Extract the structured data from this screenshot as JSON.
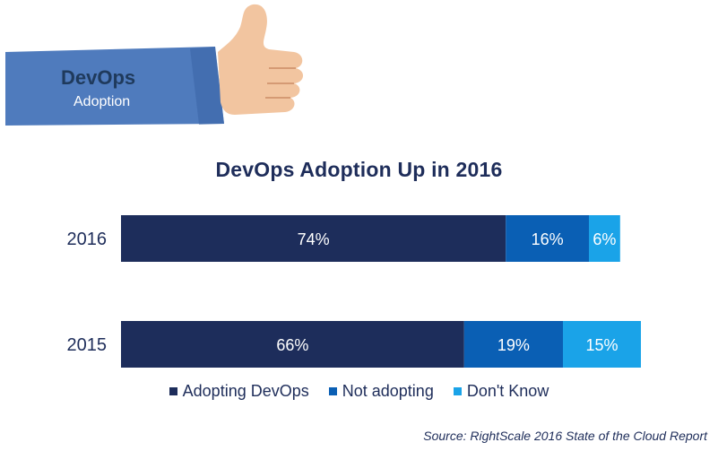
{
  "banner": {
    "title": "DevOps",
    "subtitle": "Adoption",
    "sleeve_color": "#4f7bbd",
    "hand_color": "#f2c5a0",
    "icon": "thumbs-up-icon"
  },
  "chart_data": {
    "type": "bar",
    "orientation": "horizontal",
    "stacked": true,
    "title": "DevOps Adoption Up in 2016",
    "categories": [
      "2016",
      "2015"
    ],
    "series": [
      {
        "name": "Adopting DevOps",
        "values": [
          74,
          66
        ],
        "labels": [
          "74%",
          "66%"
        ],
        "color": "#1d2d5b"
      },
      {
        "name": "Not adopting",
        "values": [
          16,
          19
        ],
        "labels": [
          "16%",
          "19%"
        ],
        "color": "#0a5fb4"
      },
      {
        "name": "Don't Know",
        "values": [
          6,
          15
        ],
        "labels": [
          "6%",
          "15%"
        ],
        "color": "#1aa3e8"
      }
    ],
    "xlim": [
      0,
      100
    ],
    "xlabel": "",
    "ylabel": "",
    "grid": false,
    "legend_position": "bottom"
  },
  "source": "Source: RightScale 2016 State of the Cloud Report"
}
